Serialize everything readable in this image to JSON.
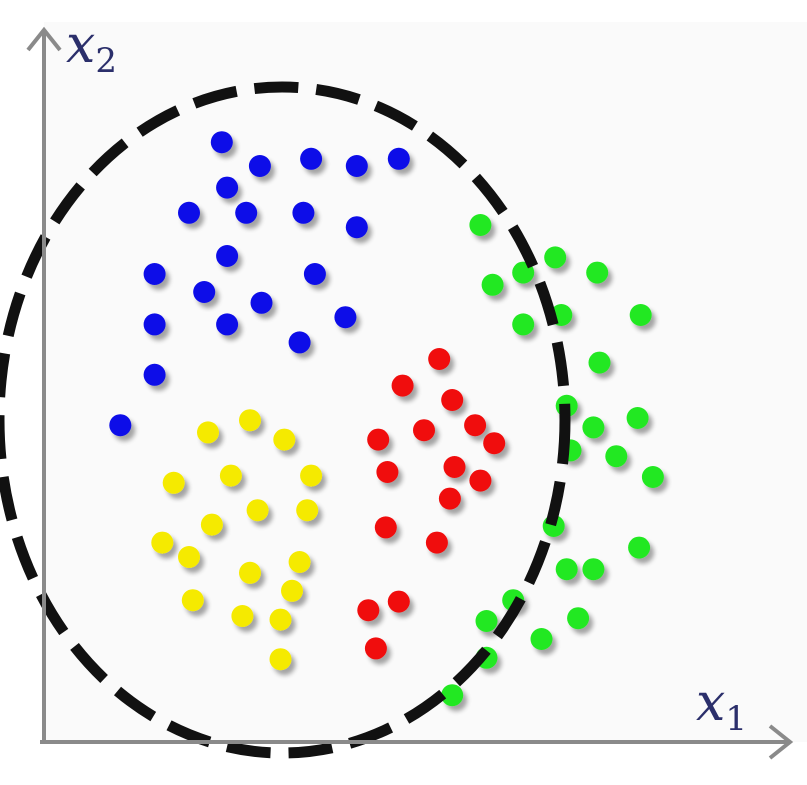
{
  "axes": {
    "x_label": {
      "base": "x",
      "subscript": "1"
    },
    "y_label": {
      "base": "x",
      "subscript": "2"
    }
  },
  "colors": {
    "background": "#fafafa",
    "axis": "#8a8a8a",
    "label": "#2b2f6b",
    "boundary": "#111111",
    "blue": "#0a0ae8",
    "green": "#22e822",
    "red": "#f00a0a",
    "yellow": "#f5ea00"
  },
  "clusters": [
    {
      "name": "blue",
      "points": [
        [
          0.233,
          0.833
        ],
        [
          0.283,
          0.8
        ],
        [
          0.35,
          0.81
        ],
        [
          0.41,
          0.8
        ],
        [
          0.465,
          0.81
        ],
        [
          0.24,
          0.77
        ],
        [
          0.19,
          0.735
        ],
        [
          0.265,
          0.735
        ],
        [
          0.34,
          0.735
        ],
        [
          0.41,
          0.715
        ],
        [
          0.24,
          0.675
        ],
        [
          0.145,
          0.65
        ],
        [
          0.21,
          0.625
        ],
        [
          0.285,
          0.61
        ],
        [
          0.355,
          0.65
        ],
        [
          0.145,
          0.58
        ],
        [
          0.24,
          0.58
        ],
        [
          0.395,
          0.59
        ],
        [
          0.335,
          0.555
        ],
        [
          0.145,
          0.51
        ],
        [
          0.1,
          0.44
        ]
      ]
    },
    {
      "name": "green",
      "points": [
        [
          0.572,
          0.718
        ],
        [
          0.588,
          0.635
        ],
        [
          0.628,
          0.652
        ],
        [
          0.67,
          0.673
        ],
        [
          0.725,
          0.652
        ],
        [
          0.628,
          0.58
        ],
        [
          0.678,
          0.593
        ],
        [
          0.782,
          0.593
        ],
        [
          0.728,
          0.527
        ],
        [
          0.685,
          0.467
        ],
        [
          0.72,
          0.437
        ],
        [
          0.778,
          0.45
        ],
        [
          0.69,
          0.405
        ],
        [
          0.75,
          0.397
        ],
        [
          0.798,
          0.368
        ],
        [
          0.668,
          0.3
        ],
        [
          0.78,
          0.27
        ],
        [
          0.685,
          0.24
        ],
        [
          0.72,
          0.24
        ],
        [
          0.615,
          0.197
        ],
        [
          0.7,
          0.172
        ],
        [
          0.58,
          0.168
        ],
        [
          0.652,
          0.143
        ],
        [
          0.58,
          0.117
        ],
        [
          0.535,
          0.065
        ]
      ]
    },
    {
      "name": "red",
      "points": [
        [
          0.518,
          0.532
        ],
        [
          0.47,
          0.495
        ],
        [
          0.535,
          0.475
        ],
        [
          0.565,
          0.44
        ],
        [
          0.498,
          0.433
        ],
        [
          0.438,
          0.42
        ],
        [
          0.59,
          0.415
        ],
        [
          0.45,
          0.375
        ],
        [
          0.538,
          0.382
        ],
        [
          0.572,
          0.363
        ],
        [
          0.532,
          0.338
        ],
        [
          0.448,
          0.298
        ],
        [
          0.515,
          0.277
        ],
        [
          0.465,
          0.195
        ],
        [
          0.425,
          0.183
        ],
        [
          0.435,
          0.13
        ]
      ]
    },
    {
      "name": "yellow",
      "points": [
        [
          0.27,
          0.447
        ],
        [
          0.215,
          0.43
        ],
        [
          0.315,
          0.42
        ],
        [
          0.245,
          0.37
        ],
        [
          0.35,
          0.37
        ],
        [
          0.17,
          0.36
        ],
        [
          0.28,
          0.322
        ],
        [
          0.345,
          0.322
        ],
        [
          0.22,
          0.302
        ],
        [
          0.155,
          0.277
        ],
        [
          0.335,
          0.25
        ],
        [
          0.19,
          0.257
        ],
        [
          0.27,
          0.235
        ],
        [
          0.325,
          0.21
        ],
        [
          0.195,
          0.197
        ],
        [
          0.26,
          0.175
        ],
        [
          0.31,
          0.17
        ],
        [
          0.31,
          0.115
        ]
      ]
    }
  ]
}
